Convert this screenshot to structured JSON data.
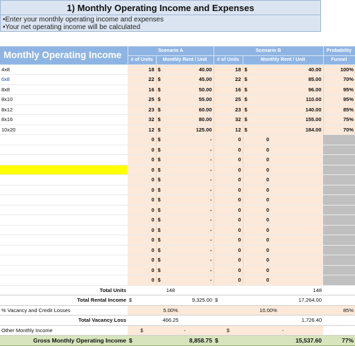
{
  "banner": {
    "title": "1) Monthly Operating Income and Expenses",
    "note1": "•Enter your monthly operating income and expenses",
    "note2": "•Your net operating income will be calculated"
  },
  "section_title": "Monthly Operating Income",
  "headers": {
    "scenario_a": "Scenario A",
    "scenario_b": "Scenario B",
    "probability": "Probability",
    "units_a": "# of Units",
    "rent_a": "Monthly Rent / Unit",
    "units_b": "# of Units",
    "rent_b": "Monthly Rent / Unit",
    "funnel": "Funnel"
  },
  "currency": "$",
  "rows": [
    {
      "label": "4x8",
      "ua": "18",
      "ra": "40.00",
      "ub": "18",
      "rb": "40.00",
      "p": "100%"
    },
    {
      "label": "6x8",
      "ua": "22",
      "ra": "45.00",
      "ub": "22",
      "rb": "85.00",
      "p": "70%"
    },
    {
      "label": "8x8",
      "ua": "16",
      "ra": "50.00",
      "ub": "16",
      "rb": "96.00",
      "p": "95%"
    },
    {
      "label": "8x10",
      "ua": "25",
      "ra": "55.00",
      "ub": "25",
      "rb": "110.00",
      "p": "95%"
    },
    {
      "label": "8x12",
      "ua": "23",
      "ra": "60.00",
      "ub": "23",
      "rb": "140.00",
      "p": "85%"
    },
    {
      "label": "8x16",
      "ua": "32",
      "ra": "80.00",
      "ub": "32",
      "rb": "155.00",
      "p": "75%"
    },
    {
      "label": "10x20",
      "ua": "12",
      "ra": "125.00",
      "ub": "12",
      "rb": "184.00",
      "p": "70%"
    }
  ],
  "empty_row": {
    "units": "0",
    "dash": "-",
    "zero": "0"
  },
  "summary": {
    "total_units_label": "Total Units",
    "total_units_a": "148",
    "total_units_b": "148",
    "total_rental_label": "Total Rental Income",
    "total_rental_a": "9,325.00",
    "total_rental_b": "17,264.00",
    "vacancy_label": "% Vacancy and Credit Losses",
    "vacancy_a": "5.00%",
    "vacancy_b": "10.00%",
    "vacancy_p": "85%",
    "total_vacancy_label": "Total Vacancy Loss",
    "total_vacancy_a": "466.25",
    "total_vacancy_b": "1,726.40",
    "other_label": "Other Monthly Income",
    "other_dash": "-",
    "gross_label": "Gross Monthly Operating Income",
    "gross_a": "8,858.75",
    "gross_b": "15,537.60",
    "gross_p": "77%"
  },
  "colors": {
    "header_blue": "#8eb4e3",
    "input_peach": "#fde9d9",
    "gross_green": "#d7e4bd",
    "highlight": "#ffff00"
  }
}
